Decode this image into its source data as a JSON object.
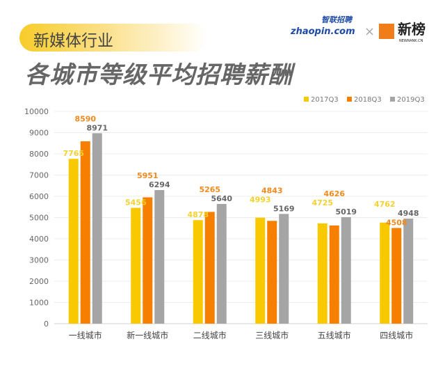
{
  "header": {
    "industry_label": "新媒体行业",
    "title": "各城市等级平均招聘薪酬",
    "logo_zhaopin": "zhaopin.com",
    "logo_zhaopin_cn": "智联招聘",
    "logo_separator": "×",
    "logo_newrank": "新榜",
    "logo_newrank_sub": "NEWRANK.CN"
  },
  "chart_data": {
    "type": "bar",
    "categories": [
      "一线城市",
      "新一线城市",
      "二线城市",
      "三线城市",
      "五线城市",
      "四线城市"
    ],
    "series": [
      {
        "name": "2017Q3",
        "color": "#f9c900",
        "label_color": "#f3d230",
        "values": [
          7765,
          5456,
          4878,
          4993,
          4725,
          4762
        ]
      },
      {
        "name": "2018Q3",
        "color": "#f77f00",
        "label_color": "#ef8a1e",
        "values": [
          8590,
          5951,
          5265,
          4843,
          4626,
          4508
        ]
      },
      {
        "name": "2019Q3",
        "color": "#a5a5a5",
        "label_color": "#666666",
        "values": [
          8971,
          6294,
          5640,
          5169,
          5019,
          4948
        ]
      }
    ],
    "ylim": [
      0,
      10000
    ],
    "yticks": [
      0,
      1000,
      2000,
      3000,
      4000,
      5000,
      6000,
      7000,
      8000,
      9000,
      10000
    ],
    "grid": true,
    "legend": "top-right",
    "title": "各城市等级平均招聘薪酬",
    "xlabel": "",
    "ylabel": ""
  }
}
